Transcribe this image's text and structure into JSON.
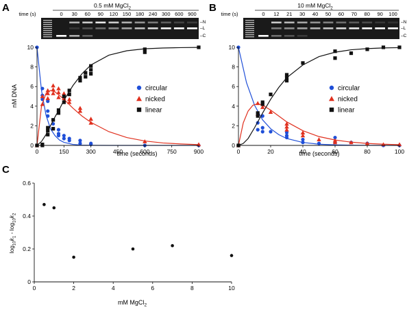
{
  "panels": {
    "A": {
      "letter": "A",
      "gel": {
        "condition_prefix": "0.5 mM MgCl",
        "condition_sub": "2",
        "time_header": "time (s)",
        "lanes": [
          "0",
          "30",
          "60",
          "90",
          "120",
          "150",
          "180",
          "240",
          "300",
          "600",
          "900"
        ],
        "band_labels": [
          "–N",
          "–L",
          "–C"
        ]
      }
    },
    "B": {
      "letter": "B",
      "gel": {
        "condition_prefix": "10 mM MgCl",
        "condition_sub": "2",
        "time_header": "time (s)",
        "lanes": [
          "0",
          "12",
          "21",
          "30",
          "40",
          "50",
          "60",
          "70",
          "80",
          "90",
          "100"
        ],
        "band_labels": [
          "–N",
          "–L",
          "–C"
        ]
      }
    },
    "C": {
      "letter": "C"
    }
  },
  "chart_data": [
    {
      "id": "A",
      "type": "scatter",
      "xlabel": "time (seconds)",
      "ylabel": "nM DNA",
      "xlim": [
        0,
        900
      ],
      "ylim": [
        0,
        10
      ],
      "xticks": [
        "0",
        "150",
        "300",
        "450",
        "600",
        "750",
        "900"
      ],
      "yticks": [
        "0",
        "2",
        "4",
        "6",
        "8",
        "10"
      ],
      "legend_position": "right-middle",
      "series": [
        {
          "name": "circular",
          "color": "#1f4fd8",
          "marker": "circle",
          "x": [
            0,
            30,
            30,
            30,
            60,
            60,
            60,
            90,
            90,
            90,
            120,
            120,
            120,
            150,
            150,
            180,
            180,
            240,
            240,
            300,
            300,
            600,
            900
          ],
          "y": [
            10,
            5.8,
            5.1,
            4.7,
            4.5,
            3.5,
            3.0,
            2.6,
            2.2,
            1.7,
            1.6,
            1.2,
            1.0,
            1.0,
            0.7,
            0.7,
            0.5,
            0.5,
            0.2,
            0.2,
            0.1,
            0.0,
            0.0
          ],
          "fit_x": [
            0,
            25,
            50,
            75,
            100,
            125,
            150,
            200,
            250,
            300,
            400,
            500,
            600,
            700,
            800,
            900
          ],
          "fit_y": [
            10,
            5.6,
            3.1,
            1.7,
            1.0,
            0.55,
            0.31,
            0.1,
            0.03,
            0.01,
            0,
            0,
            0,
            0,
            0,
            0
          ]
        },
        {
          "name": "nicked",
          "color": "#e0301e",
          "marker": "triangle",
          "x": [
            0,
            30,
            30,
            60,
            60,
            60,
            90,
            90,
            90,
            120,
            120,
            120,
            150,
            150,
            180,
            180,
            240,
            240,
            300,
            300,
            600,
            900
          ],
          "y": [
            0,
            4.2,
            5.0,
            5.3,
            4.8,
            5.6,
            6.1,
            5.7,
            5.3,
            5.8,
            5.4,
            4.9,
            5.3,
            4.8,
            4.7,
            4.4,
            3.8,
            3.5,
            2.7,
            2.3,
            0.4,
            0.1
          ],
          "fit_x": [
            0,
            25,
            50,
            75,
            100,
            125,
            150,
            200,
            250,
            300,
            400,
            500,
            600,
            700,
            800,
            900
          ],
          "fit_y": [
            0,
            4.0,
            5.3,
            5.6,
            5.45,
            5.1,
            4.7,
            3.8,
            3.0,
            2.35,
            1.4,
            0.8,
            0.45,
            0.25,
            0.15,
            0.08
          ]
        },
        {
          "name": "linear",
          "color": "#111111",
          "marker": "square",
          "x": [
            0,
            30,
            30,
            60,
            60,
            60,
            90,
            90,
            120,
            120,
            150,
            150,
            180,
            180,
            240,
            240,
            270,
            270,
            300,
            300,
            300,
            600,
            600,
            900
          ],
          "y": [
            0,
            0.1,
            0.0,
            1.5,
            1.8,
            1.1,
            1.7,
            2.6,
            3.3,
            3.6,
            4.4,
            5.0,
            5.6,
            5.2,
            6.9,
            6.6,
            7.4,
            7.0,
            8.1,
            7.7,
            7.3,
            9.8,
            9.5,
            10.0
          ],
          "fit_x": [
            0,
            25,
            50,
            75,
            100,
            125,
            150,
            200,
            250,
            300,
            400,
            500,
            600,
            700,
            800,
            900
          ],
          "fit_y": [
            0,
            0.4,
            1.1,
            2.0,
            2.9,
            3.7,
            4.6,
            6.1,
            7.3,
            8.2,
            9.2,
            9.65,
            9.85,
            9.93,
            9.97,
            9.99
          ]
        }
      ]
    },
    {
      "id": "B",
      "type": "scatter",
      "xlabel": "time (seconds)",
      "ylabel": "",
      "xlim": [
        0,
        100
      ],
      "ylim": [
        0,
        10
      ],
      "xticks": [
        "0",
        "20",
        "40",
        "60",
        "80",
        "100"
      ],
      "yticks": [
        "0",
        "2",
        "4",
        "6",
        "8",
        "10"
      ],
      "legend_position": "right-middle",
      "series": [
        {
          "name": "circular",
          "color": "#1f4fd8",
          "marker": "circle",
          "x": [
            0,
            12,
            12,
            12,
            15,
            15,
            15,
            20,
            30,
            30,
            30,
            40,
            40,
            50,
            60,
            60,
            70,
            80,
            90,
            100
          ],
          "y": [
            10,
            3.3,
            2.3,
            1.6,
            3.0,
            1.8,
            1.4,
            1.4,
            1.3,
            1.0,
            0.8,
            0.6,
            0.3,
            0.2,
            0.8,
            0.3,
            0.3,
            0.2,
            0.0,
            0.0
          ],
          "fit_x": [
            0,
            5,
            10,
            15,
            20,
            25,
            30,
            40,
            50,
            60,
            70,
            80,
            90,
            100
          ],
          "fit_y": [
            10,
            6.4,
            4.1,
            2.6,
            1.7,
            1.1,
            0.7,
            0.3,
            0.12,
            0.05,
            0.02,
            0.01,
            0,
            0
          ]
        },
        {
          "name": "nicked",
          "color": "#e0301e",
          "marker": "triangle",
          "x": [
            0,
            12,
            12,
            15,
            15,
            20,
            30,
            30,
            30,
            40,
            40,
            50,
            60,
            60,
            70,
            80,
            90,
            100
          ],
          "y": [
            0,
            4.3,
            3.2,
            4.2,
            3.9,
            3.4,
            2.2,
            1.9,
            1.6,
            1.3,
            1.0,
            0.6,
            0.5,
            0.3,
            0.3,
            0.2,
            0.1,
            0.1
          ],
          "fit_x": [
            0,
            3,
            6,
            9,
            12,
            15,
            20,
            25,
            30,
            40,
            50,
            60,
            70,
            80,
            90,
            100
          ],
          "fit_y": [
            0,
            2.3,
            3.5,
            4.1,
            4.25,
            4.1,
            3.6,
            3.0,
            2.4,
            1.5,
            0.9,
            0.55,
            0.33,
            0.2,
            0.12,
            0.07
          ]
        },
        {
          "name": "linear",
          "color": "#111111",
          "marker": "square",
          "x": [
            0,
            12,
            12,
            15,
            15,
            20,
            30,
            30,
            30,
            40,
            60,
            60,
            70,
            80,
            90,
            100
          ],
          "y": [
            0,
            3.3,
            3.0,
            4.4,
            4.2,
            5.2,
            7.2,
            6.9,
            6.6,
            8.4,
            9.6,
            8.9,
            9.4,
            9.8,
            10.0,
            10.0
          ],
          "fit_x": [
            0,
            3,
            6,
            10,
            15,
            20,
            25,
            30,
            40,
            50,
            60,
            70,
            80,
            90,
            100
          ],
          "fit_y": [
            0,
            0.2,
            0.7,
            1.8,
            3.3,
            4.7,
            5.9,
            6.9,
            8.2,
            9.05,
            9.5,
            9.75,
            9.87,
            9.94,
            9.97
          ]
        }
      ]
    },
    {
      "id": "C",
      "type": "scatter",
      "xlabel_prefix": "mM MgCl",
      "xlabel_sub": "2",
      "ylabel_parts": [
        "log",
        "10",
        "k",
        "1",
        " - log",
        "10",
        "k",
        "2"
      ],
      "xlim": [
        0,
        10
      ],
      "ylim": [
        0,
        0.6
      ],
      "xticks": [
        "0",
        "2",
        "4",
        "6",
        "8",
        "10"
      ],
      "yticks": [
        "0",
        "0.2",
        "0.4",
        "0.6"
      ],
      "series": [
        {
          "color": "#111111",
          "marker": "circle",
          "x": [
            0.5,
            1,
            2,
            5,
            7,
            10
          ],
          "y": [
            0.47,
            0.45,
            0.15,
            0.2,
            0.22,
            0.16
          ]
        }
      ]
    }
  ]
}
